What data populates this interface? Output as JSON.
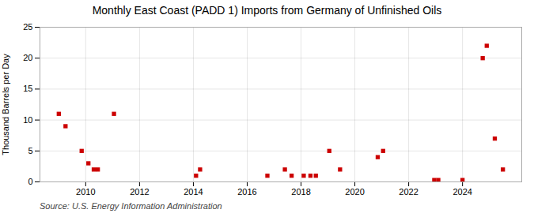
{
  "chart_data": {
    "type": "scatter",
    "title": "Monthly East Coast (PADD 1) Imports from Germany of Unfinished Oils",
    "ylabel": "Thousand Barrels per Day",
    "source": "Source: U.S. Energy Information Administration",
    "x": [
      2009.0,
      2009.25,
      2009.85,
      2010.1,
      2010.3,
      2010.45,
      2011.05,
      2014.1,
      2014.25,
      2016.75,
      2017.4,
      2017.65,
      2018.1,
      2018.35,
      2018.55,
      2019.05,
      2019.45,
      2020.85,
      2021.05,
      2022.95,
      2023.1,
      2024.0,
      2024.75,
      2024.9,
      2025.2,
      2025.5
    ],
    "values": [
      11,
      9,
      5,
      3,
      2,
      2,
      11,
      1,
      2,
      1,
      2,
      1,
      1,
      1,
      1,
      5,
      2,
      4,
      5,
      0.3,
      0.3,
      0.3,
      20,
      22,
      7,
      2
    ],
    "color": "#cc0000",
    "marker": "square",
    "xlim": [
      2008.3,
      2026.2
    ],
    "xticks": [
      2010,
      2012,
      2014,
      2016,
      2018,
      2020,
      2022,
      2024
    ],
    "ylim": [
      0,
      25
    ],
    "yticks": [
      0,
      5,
      10,
      15,
      20,
      25
    ],
    "grid": true
  }
}
